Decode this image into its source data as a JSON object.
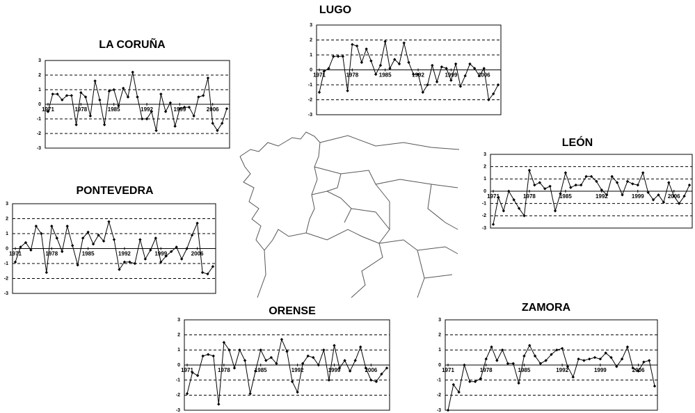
{
  "chart_data": [
    {
      "type": "line",
      "title": "LA CORUÑA",
      "x": [
        1971,
        1972,
        1973,
        1974,
        1975,
        1976,
        1977,
        1978,
        1979,
        1980,
        1981,
        1982,
        1983,
        1984,
        1985,
        1986,
        1987,
        1988,
        1989,
        1990,
        1991,
        1992,
        1993,
        1994,
        1995,
        1996,
        1997,
        1998,
        1999,
        2000,
        2001,
        2002,
        2003,
        2004,
        2005,
        2006,
        2007,
        2008,
        2009
      ],
      "values": [
        -0.5,
        0.7,
        0.7,
        0.3,
        0.6,
        0.6,
        -1.4,
        0.8,
        0.5,
        -0.8,
        1.6,
        0.3,
        -1.4,
        0.9,
        1.0,
        -0.1,
        1.1,
        0.5,
        2.2,
        0.5,
        -1.0,
        -1.0,
        -0.5,
        -1.8,
        0.7,
        -0.5,
        0.1,
        -1.5,
        -0.3,
        -0.2,
        -0.2,
        -0.8,
        0.5,
        0.6,
        1.8,
        -1.3,
        -1.8,
        -1.3,
        -0.3
      ],
      "xlim": [
        1971,
        2009
      ],
      "xticks": [
        1971,
        1978,
        1985,
        1992,
        1999,
        2006
      ],
      "ylim": [
        -3,
        3
      ],
      "yticks": [
        -3,
        -2,
        -1,
        0,
        1,
        2,
        3
      ],
      "color": "#000000",
      "grid": true
    },
    {
      "type": "line",
      "title": "LUGO",
      "x": [
        1971,
        1972,
        1973,
        1974,
        1975,
        1976,
        1977,
        1978,
        1979,
        1980,
        1981,
        1982,
        1983,
        1984,
        1985,
        1986,
        1987,
        1988,
        1989,
        1990,
        1991,
        1992,
        1993,
        1994,
        1995,
        1996,
        1997,
        1998,
        1999,
        2000,
        2001,
        2002,
        2003,
        2004,
        2005,
        2006,
        2007,
        2008,
        2009
      ],
      "values": [
        -1.5,
        -0.1,
        0.1,
        0.9,
        0.9,
        0.9,
        -1.4,
        1.7,
        1.6,
        0.5,
        1.4,
        0.6,
        -0.3,
        0.3,
        1.9,
        0.1,
        0.7,
        0.4,
        1.8,
        0.5,
        -0.3,
        -0.3,
        -1.5,
        -1.0,
        0.3,
        -0.8,
        0.2,
        0.1,
        -0.7,
        0.4,
        -1.1,
        -0.4,
        0.4,
        0.1,
        -0.4,
        0.1,
        -2.0,
        -1.6,
        -1.0
      ],
      "xlim": [
        1971,
        2009
      ],
      "xticks": [
        1971,
        1978,
        1985,
        1992,
        1999,
        2006
      ],
      "ylim": [
        -3,
        3
      ],
      "yticks": [
        -3,
        -2,
        -1,
        0,
        1,
        2,
        3
      ],
      "color": "#000000",
      "grid": true
    },
    {
      "type": "line",
      "title": "LEÓN",
      "x": [
        1971,
        1972,
        1973,
        1974,
        1975,
        1976,
        1977,
        1978,
        1979,
        1980,
        1981,
        1982,
        1983,
        1984,
        1985,
        1986,
        1987,
        1988,
        1989,
        1990,
        1991,
        1992,
        1993,
        1994,
        1995,
        1996,
        1997,
        1998,
        1999,
        2000,
        2001,
        2002,
        2003,
        2004,
        2005,
        2006,
        2007,
        2008,
        2009
      ],
      "values": [
        -2.7,
        -0.5,
        -1.6,
        0.0,
        -0.7,
        -1.4,
        -2.0,
        1.7,
        0.5,
        0.7,
        0.2,
        0.4,
        -1.6,
        -0.2,
        1.5,
        0.3,
        0.5,
        0.5,
        1.2,
        1.2,
        0.8,
        0.1,
        -0.3,
        1.2,
        0.7,
        -0.3,
        0.8,
        0.6,
        0.5,
        1.5,
        -0.1,
        -0.7,
        -0.3,
        -0.9,
        0.7,
        -0.4,
        -1.0,
        -0.4,
        0.5
      ],
      "xlim": [
        1971,
        2009
      ],
      "xticks": [
        1971,
        1978,
        1985,
        1992,
        1999,
        2006
      ],
      "ylim": [
        -3,
        3
      ],
      "yticks": [
        -3,
        -2,
        -1,
        0,
        1,
        2,
        3
      ],
      "color": "#000000",
      "grid": true
    },
    {
      "type": "line",
      "title": "PONTEVEDRA",
      "x": [
        1971,
        1972,
        1973,
        1974,
        1975,
        1976,
        1977,
        1978,
        1979,
        1980,
        1981,
        1982,
        1983,
        1984,
        1985,
        1986,
        1987,
        1988,
        1989,
        1990,
        1991,
        1992,
        1993,
        1994,
        1995,
        1996,
        1997,
        1998,
        1999,
        2000,
        2001,
        2002,
        2003,
        2004,
        2005,
        2006,
        2007,
        2008,
        2009
      ],
      "values": [
        -0.9,
        0.1,
        0.4,
        -0.1,
        1.5,
        1.0,
        -1.6,
        1.5,
        0.7,
        -0.2,
        1.5,
        0.2,
        -1.1,
        0.7,
        1.1,
        0.3,
        0.9,
        0.5,
        1.8,
        0.6,
        -1.4,
        -0.9,
        -0.9,
        -1.0,
        0.6,
        -0.7,
        -0.1,
        0.7,
        -0.9,
        -0.5,
        -0.2,
        0.1,
        -0.7,
        0.0,
        0.9,
        1.7,
        -1.6,
        -1.7,
        -1.2
      ],
      "xlim": [
        1971,
        2009
      ],
      "xticks": [
        1971,
        1978,
        1985,
        1992,
        1999,
        2006
      ],
      "ylim": [
        -3,
        3
      ],
      "yticks": [
        -3,
        -2,
        -1,
        0,
        1,
        2,
        3
      ],
      "color": "#000000",
      "grid": true
    },
    {
      "type": "line",
      "title": "ORENSE",
      "x": [
        1971,
        1972,
        1973,
        1974,
        1975,
        1976,
        1977,
        1978,
        1979,
        1980,
        1981,
        1982,
        1983,
        1984,
        1985,
        1986,
        1987,
        1988,
        1989,
        1990,
        1991,
        1992,
        1993,
        1994,
        1995,
        1996,
        1997,
        1998,
        1999,
        2000,
        2001,
        2002,
        2003,
        2004,
        2005,
        2006,
        2007,
        2008,
        2009
      ],
      "values": [
        -1.9,
        -0.5,
        -0.7,
        0.6,
        0.7,
        0.6,
        -2.6,
        1.5,
        1.0,
        -0.2,
        1.0,
        0.3,
        -1.9,
        -0.4,
        1.0,
        0.3,
        0.5,
        0.1,
        1.7,
        0.9,
        -1.1,
        -1.8,
        0.1,
        0.6,
        0.5,
        0.0,
        1.0,
        -1.0,
        1.3,
        -0.2,
        0.3,
        -0.4,
        0.3,
        1.2,
        -0.2,
        -1.0,
        -1.1,
        -0.6,
        -0.2
      ],
      "xlim": [
        1971,
        2009
      ],
      "xticks": [
        1971,
        1978,
        1985,
        1992,
        1999,
        2006
      ],
      "ylim": [
        -3,
        3
      ],
      "yticks": [
        -3,
        -2,
        -1,
        0,
        1,
        2,
        3
      ],
      "color": "#000000",
      "grid": true
    },
    {
      "type": "line",
      "title": "ZAMORA",
      "x": [
        1971,
        1972,
        1973,
        1974,
        1975,
        1976,
        1977,
        1978,
        1979,
        1980,
        1981,
        1982,
        1983,
        1984,
        1985,
        1986,
        1987,
        1988,
        1989,
        1990,
        1991,
        1992,
        1993,
        1994,
        1995,
        1996,
        1997,
        1998,
        1999,
        2000,
        2001,
        2002,
        2003,
        2004,
        2005,
        2006,
        2007,
        2008,
        2009
      ],
      "values": [
        -3.0,
        -1.3,
        -1.8,
        0.0,
        -1.1,
        -1.1,
        -0.9,
        0.4,
        1.2,
        0.3,
        1.0,
        0.1,
        0.1,
        -1.2,
        0.6,
        1.3,
        0.6,
        0.1,
        0.3,
        0.7,
        1.0,
        1.1,
        -0.1,
        -0.8,
        0.4,
        0.3,
        0.4,
        0.5,
        0.4,
        0.8,
        0.5,
        -0.1,
        0.4,
        1.2,
        -0.2,
        -0.4,
        0.2,
        0.3,
        -1.4
      ],
      "xlim": [
        1971,
        2009
      ],
      "xticks": [
        1971,
        1978,
        1985,
        1992,
        1999,
        2006
      ],
      "ylim": [
        -3,
        3
      ],
      "yticks": [
        -3,
        -2,
        -1,
        0,
        1,
        2,
        3
      ],
      "color": "#000000",
      "grid": true
    }
  ]
}
